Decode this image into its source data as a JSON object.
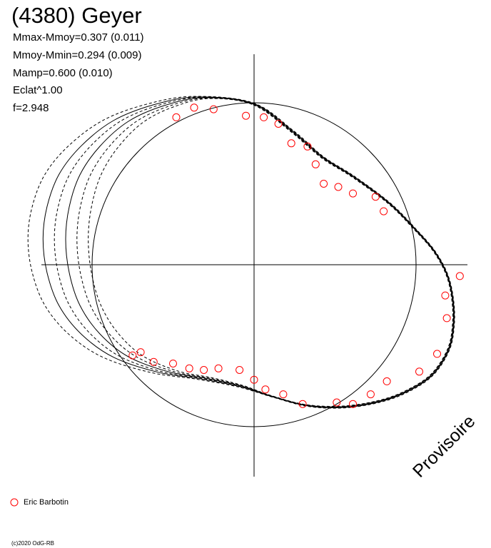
{
  "chart_data": {
    "type": "scatter",
    "title": "(4380) Geyer",
    "stats": [
      "Mmax-Mmoy=0.307 (0.011)",
      "Mmoy-Mmin=0.294 (0.009)",
      "Mamp=0.600 (0.010)",
      "Eclat^1.00",
      "f=2.948"
    ],
    "grid": false,
    "legend_position": "bottom-left",
    "series": [
      {
        "name": "Eric Barbotin",
        "marker": "open-circle",
        "color": "#ff0000",
        "points": [
          [
            -0.48,
            0.91
          ],
          [
            -0.37,
            0.97
          ],
          [
            -0.25,
            0.96
          ],
          [
            -0.05,
            0.92
          ],
          [
            0.06,
            0.91
          ],
          [
            0.15,
            0.87
          ],
          [
            0.23,
            0.75
          ],
          [
            0.33,
            0.73
          ],
          [
            0.38,
            0.62
          ],
          [
            0.43,
            0.5
          ],
          [
            0.52,
            0.48
          ],
          [
            0.61,
            0.44
          ],
          [
            0.75,
            0.42
          ],
          [
            0.8,
            0.33
          ],
          [
            1.27,
            -0.07
          ],
          [
            1.18,
            -0.19
          ],
          [
            1.19,
            -0.33
          ],
          [
            1.13,
            -0.55
          ],
          [
            1.02,
            -0.66
          ],
          [
            0.82,
            -0.72
          ],
          [
            0.72,
            -0.8
          ],
          [
            0.61,
            -0.86
          ],
          [
            0.51,
            -0.85
          ],
          [
            0.3,
            -0.86
          ],
          [
            0.18,
            -0.8
          ],
          [
            0.07,
            -0.77
          ],
          [
            0.0,
            -0.71
          ],
          [
            -0.09,
            -0.65
          ],
          [
            -0.22,
            -0.64
          ],
          [
            -0.31,
            -0.65
          ],
          [
            -0.4,
            -0.64
          ],
          [
            -0.5,
            -0.61
          ],
          [
            -0.62,
            -0.6
          ],
          [
            -0.75,
            -0.56
          ],
          [
            -0.7,
            -0.54
          ]
        ]
      }
    ]
  },
  "watermark": "Provisoire",
  "copyright": "(c)2020 OdG-RB"
}
